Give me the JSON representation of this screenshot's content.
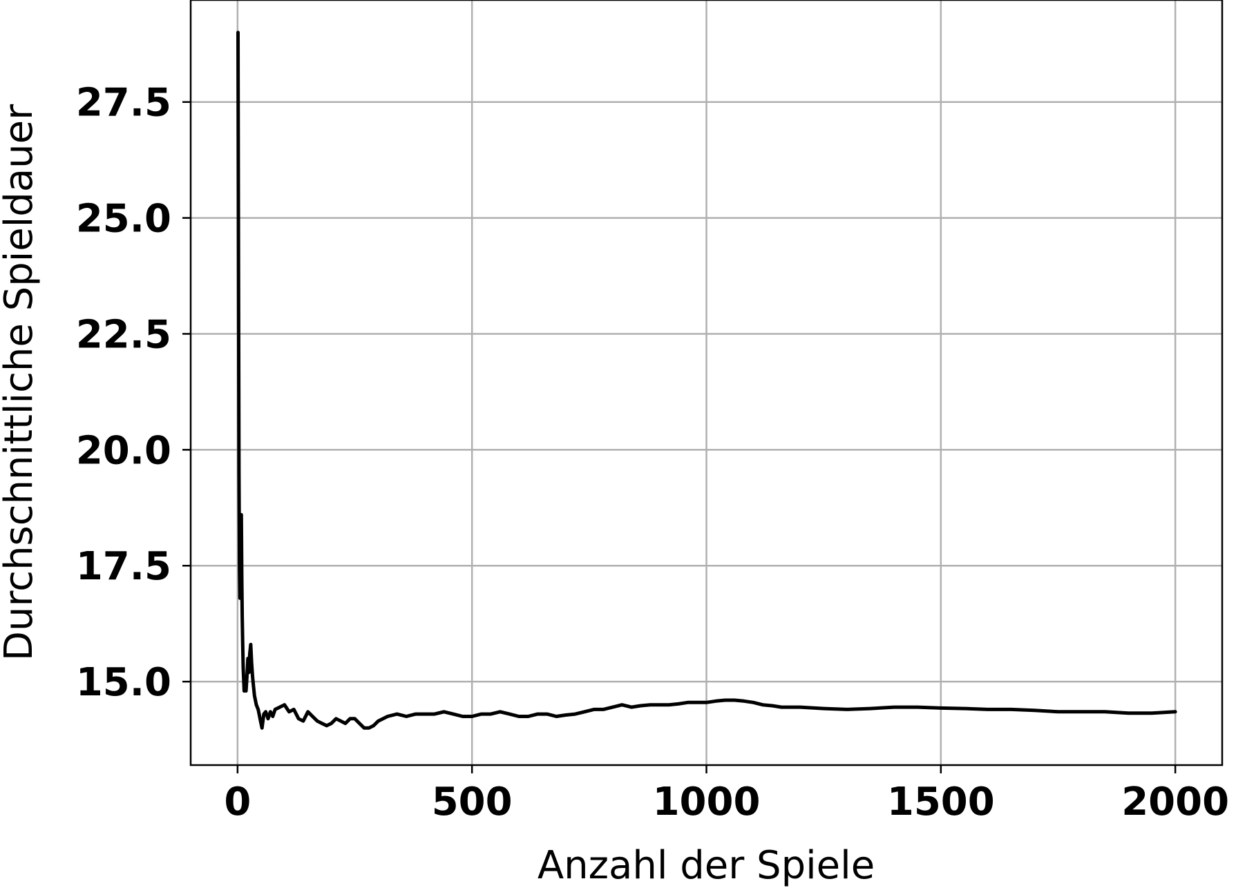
{
  "chart_data": {
    "type": "line",
    "title": "",
    "xlabel": "Anzahl der Spiele",
    "ylabel": "Durchschnittliche Spieldauer",
    "xlim": [
      -100,
      2100
    ],
    "ylim": [
      13.2,
      29.7
    ],
    "xticks": [
      0,
      500,
      1000,
      1500,
      2000
    ],
    "xtick_labels": [
      "0",
      "500",
      "1000",
      "1500",
      "2000"
    ],
    "yticks": [
      15.0,
      17.5,
      20.0,
      22.5,
      25.0,
      27.5
    ],
    "ytick_labels": [
      "15.0",
      "17.5",
      "20.0",
      "22.5",
      "25.0",
      "27.5"
    ],
    "grid": true,
    "line_color": "#000000",
    "grid_color": "#b0b0b0",
    "series": [
      {
        "x": [
          1,
          2,
          3,
          4,
          5,
          6,
          7,
          8,
          9,
          10,
          11,
          12,
          14,
          16,
          18,
          20,
          22,
          24,
          26,
          28,
          30,
          32,
          34,
          36,
          40,
          44,
          48,
          52,
          56,
          60,
          65,
          70,
          75,
          80,
          90,
          100,
          110,
          120,
          130,
          140,
          150,
          160,
          170,
          180,
          190,
          200,
          210,
          220,
          230,
          240,
          250,
          260,
          270,
          280,
          290,
          300,
          320,
          340,
          360,
          380,
          400,
          420,
          440,
          460,
          480,
          500,
          520,
          540,
          560,
          580,
          600,
          620,
          640,
          660,
          680,
          700,
          720,
          740,
          760,
          780,
          800,
          820,
          840,
          860,
          880,
          900,
          920,
          940,
          960,
          980,
          1000,
          1020,
          1040,
          1060,
          1080,
          1100,
          1120,
          1140,
          1160,
          1180,
          1200,
          1250,
          1300,
          1350,
          1400,
          1450,
          1500,
          1550,
          1600,
          1650,
          1700,
          1750,
          1800,
          1850,
          1900,
          1950,
          2000
        ],
        "values": [
          29.0,
          24.0,
          19.5,
          17.5,
          16.8,
          17.0,
          17.6,
          18.6,
          17.2,
          16.4,
          15.8,
          15.3,
          14.8,
          15.0,
          14.8,
          15.1,
          15.5,
          15.2,
          15.6,
          15.8,
          15.4,
          15.1,
          14.9,
          14.7,
          14.5,
          14.4,
          14.2,
          14.0,
          14.3,
          14.35,
          14.2,
          14.35,
          14.25,
          14.4,
          14.45,
          14.5,
          14.35,
          14.4,
          14.2,
          14.15,
          14.35,
          14.25,
          14.15,
          14.1,
          14.05,
          14.1,
          14.2,
          14.15,
          14.1,
          14.2,
          14.2,
          14.1,
          14.0,
          14.0,
          14.05,
          14.15,
          14.25,
          14.3,
          14.25,
          14.3,
          14.3,
          14.3,
          14.35,
          14.3,
          14.25,
          14.25,
          14.3,
          14.3,
          14.35,
          14.3,
          14.25,
          14.25,
          14.3,
          14.3,
          14.25,
          14.28,
          14.3,
          14.35,
          14.4,
          14.4,
          14.45,
          14.5,
          14.45,
          14.48,
          14.5,
          14.5,
          14.5,
          14.52,
          14.55,
          14.55,
          14.55,
          14.58,
          14.6,
          14.6,
          14.58,
          14.55,
          14.5,
          14.48,
          14.45,
          14.45,
          14.45,
          14.42,
          14.4,
          14.42,
          14.45,
          14.45,
          14.43,
          14.42,
          14.4,
          14.4,
          14.38,
          14.35,
          14.35,
          14.35,
          14.32,
          14.32,
          14.35
        ]
      }
    ]
  }
}
